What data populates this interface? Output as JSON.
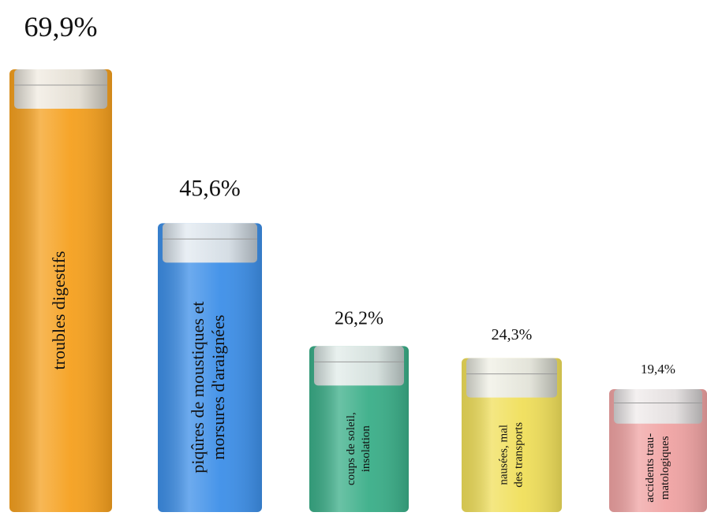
{
  "chart_data": {
    "type": "bar",
    "categories": [
      [
        "troubles digestifs"
      ],
      [
        "piqûres de moustiques et",
        "morsures d'araignées"
      ],
      [
        "coups de soleil,",
        "insolation"
      ],
      [
        "nausées, mal",
        "des transports"
      ],
      [
        "accidents trau-",
        "matologiques"
      ]
    ],
    "values": [
      69.9,
      45.6,
      26.2,
      24.3,
      19.4
    ],
    "value_labels": [
      "69,9%",
      "45,6%",
      "26,2%",
      "24,3%",
      "19,4%"
    ],
    "colors": [
      "#f5a01e",
      "#3d8fe8",
      "#3aae88",
      "#f0df5a",
      "#f0a3a3"
    ]
  }
}
